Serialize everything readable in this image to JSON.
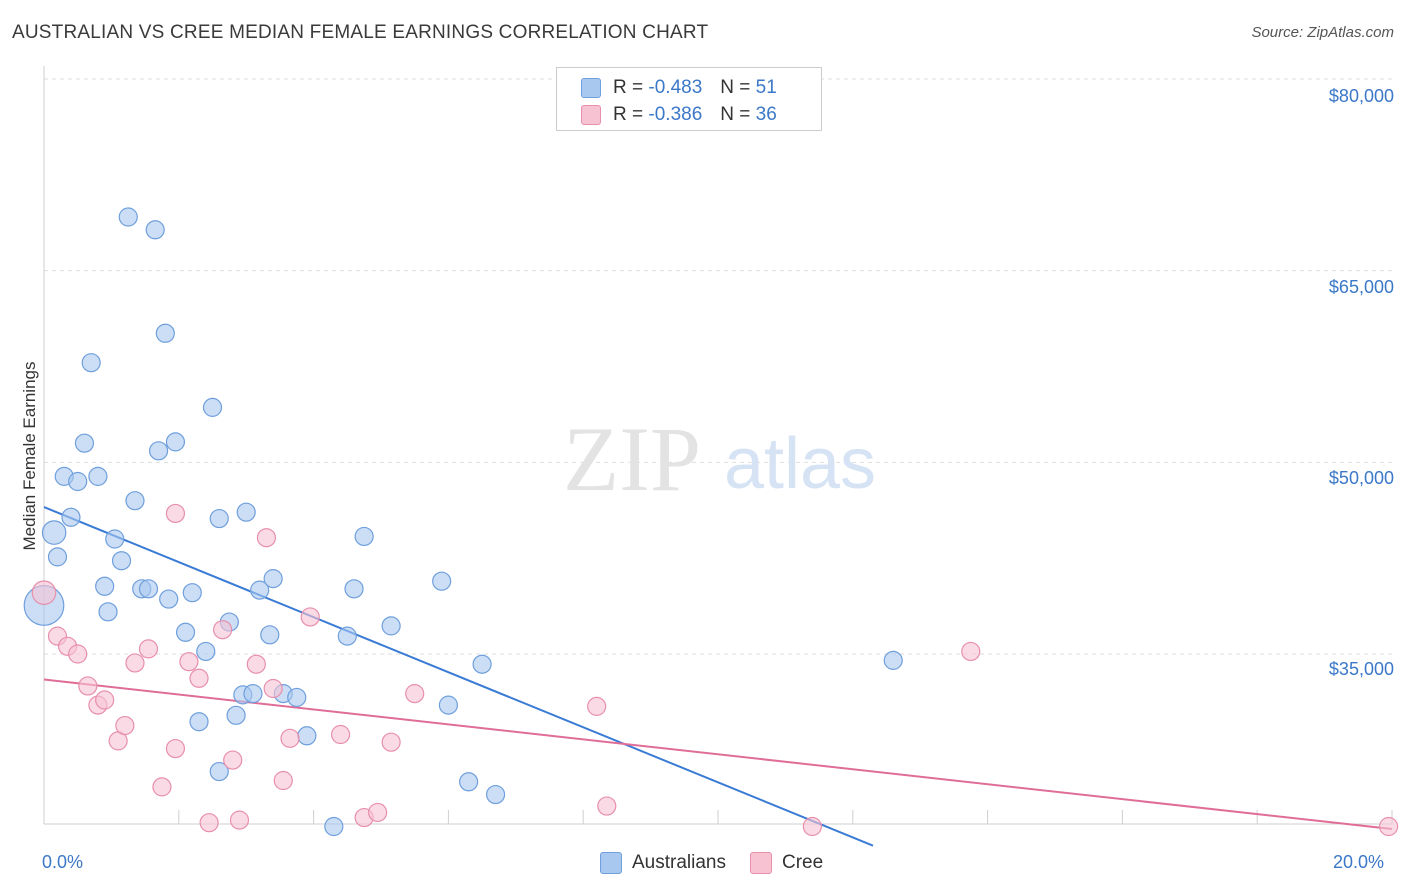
{
  "header": {
    "title": "AUSTRALIAN VS CREE MEDIAN FEMALE EARNINGS CORRELATION CHART",
    "source": "Source: ZipAtlas.com"
  },
  "watermark": {
    "zip": "ZIP",
    "atlas": "atlas"
  },
  "legend": {
    "rows": [
      {
        "r_label": "R =",
        "r_value": "-0.483",
        "n_label": "N =",
        "n_value": "51",
        "color": "#a9c8f0",
        "border": "#6f9fdc"
      },
      {
        "r_label": "R =",
        "r_value": "-0.386",
        "n_label": "N =",
        "n_value": "36",
        "color": "#f7c3d3",
        "border": "#e88fab"
      }
    ]
  },
  "bottom_legend": {
    "australians": "Australians",
    "cree": "Cree"
  },
  "chart_data": {
    "type": "scatter",
    "title": "AUSTRALIAN VS CREE MEDIAN FEMALE EARNINGS CORRELATION CHART",
    "xlabel": "",
    "ylabel": "Median Female Earnings",
    "xlim": [
      0,
      20
    ],
    "ylim": [
      20000,
      82000
    ],
    "x_tick_labels": [
      "0.0%",
      "20.0%"
    ],
    "y_ticks": [
      35000,
      50000,
      65000,
      80000
    ],
    "y_tick_labels": [
      "$35,000",
      "$50,000",
      "$65,000",
      "$80,000"
    ],
    "grid": true,
    "legend_position": "top-center",
    "series": [
      {
        "name": "Australians",
        "color": "#6f9fdc",
        "fill": "#a9c8f0",
        "trend": {
          "x": [
            0.0,
            12.3
          ],
          "y": [
            46500,
            20000
          ],
          "color": "#3a7bd5"
        },
        "points": [
          {
            "x": 0.0,
            "y": 38800,
            "s": 2.2
          },
          {
            "x": 0.15,
            "y": 44500,
            "s": 1.3
          },
          {
            "x": 0.2,
            "y": 42600
          },
          {
            "x": 0.3,
            "y": 48900
          },
          {
            "x": 0.4,
            "y": 45700
          },
          {
            "x": 0.5,
            "y": 48500
          },
          {
            "x": 0.6,
            "y": 51500
          },
          {
            "x": 0.7,
            "y": 57800
          },
          {
            "x": 0.8,
            "y": 48900
          },
          {
            "x": 0.9,
            "y": 40300
          },
          {
            "x": 0.95,
            "y": 38300
          },
          {
            "x": 1.05,
            "y": 44000
          },
          {
            "x": 1.15,
            "y": 42300
          },
          {
            "x": 1.25,
            "y": 69200
          },
          {
            "x": 1.35,
            "y": 47000
          },
          {
            "x": 1.45,
            "y": 40100
          },
          {
            "x": 1.55,
            "y": 40100
          },
          {
            "x": 1.65,
            "y": 68200
          },
          {
            "x": 1.7,
            "y": 50900
          },
          {
            "x": 1.8,
            "y": 60100
          },
          {
            "x": 1.85,
            "y": 39300
          },
          {
            "x": 1.95,
            "y": 51600
          },
          {
            "x": 2.1,
            "y": 36700
          },
          {
            "x": 2.2,
            "y": 39800
          },
          {
            "x": 2.3,
            "y": 29700
          },
          {
            "x": 2.4,
            "y": 35200
          },
          {
            "x": 2.5,
            "y": 54300
          },
          {
            "x": 2.6,
            "y": 25800
          },
          {
            "x": 2.6,
            "y": 45600
          },
          {
            "x": 2.75,
            "y": 37500
          },
          {
            "x": 2.85,
            "y": 30200
          },
          {
            "x": 2.95,
            "y": 31800
          },
          {
            "x": 3.0,
            "y": 46100
          },
          {
            "x": 3.1,
            "y": 31900
          },
          {
            "x": 3.2,
            "y": 40000
          },
          {
            "x": 3.35,
            "y": 36500
          },
          {
            "x": 3.4,
            "y": 40900
          },
          {
            "x": 3.55,
            "y": 31900
          },
          {
            "x": 3.75,
            "y": 31600
          },
          {
            "x": 3.9,
            "y": 28600
          },
          {
            "x": 4.3,
            "y": 21500
          },
          {
            "x": 4.5,
            "y": 36400
          },
          {
            "x": 4.6,
            "y": 40100
          },
          {
            "x": 4.75,
            "y": 44200
          },
          {
            "x": 5.15,
            "y": 37200
          },
          {
            "x": 5.9,
            "y": 40700
          },
          {
            "x": 6.0,
            "y": 31000
          },
          {
            "x": 6.3,
            "y": 25000
          },
          {
            "x": 6.5,
            "y": 34200
          },
          {
            "x": 6.7,
            "y": 24000
          },
          {
            "x": 12.6,
            "y": 34500
          }
        ]
      },
      {
        "name": "Cree",
        "color": "#e88fab",
        "fill": "#f7c3d3",
        "trend": {
          "x": [
            0.0,
            20.0
          ],
          "y": [
            33000,
            21300
          ],
          "color": "#e06d97"
        },
        "points": [
          {
            "x": 0.0,
            "y": 39800,
            "s": 1.3
          },
          {
            "x": 0.2,
            "y": 36400
          },
          {
            "x": 0.35,
            "y": 35600
          },
          {
            "x": 0.5,
            "y": 35000
          },
          {
            "x": 0.65,
            "y": 32500
          },
          {
            "x": 0.8,
            "y": 31000
          },
          {
            "x": 0.9,
            "y": 31400
          },
          {
            "x": 1.1,
            "y": 28200
          },
          {
            "x": 1.2,
            "y": 29400
          },
          {
            "x": 1.35,
            "y": 34300
          },
          {
            "x": 1.55,
            "y": 35400
          },
          {
            "x": 1.75,
            "y": 24600
          },
          {
            "x": 1.95,
            "y": 46000
          },
          {
            "x": 1.95,
            "y": 27600
          },
          {
            "x": 2.15,
            "y": 34400
          },
          {
            "x": 2.3,
            "y": 33100
          },
          {
            "x": 2.45,
            "y": 21800
          },
          {
            "x": 2.65,
            "y": 36900
          },
          {
            "x": 2.8,
            "y": 26700
          },
          {
            "x": 2.9,
            "y": 22000
          },
          {
            "x": 3.15,
            "y": 34200
          },
          {
            "x": 3.3,
            "y": 44100
          },
          {
            "x": 3.4,
            "y": 32300
          },
          {
            "x": 3.55,
            "y": 25100
          },
          {
            "x": 3.65,
            "y": 28400
          },
          {
            "x": 3.95,
            "y": 37900
          },
          {
            "x": 4.4,
            "y": 28700
          },
          {
            "x": 4.75,
            "y": 22200
          },
          {
            "x": 4.95,
            "y": 22600
          },
          {
            "x": 5.15,
            "y": 28100
          },
          {
            "x": 5.5,
            "y": 31900
          },
          {
            "x": 8.2,
            "y": 30900
          },
          {
            "x": 8.35,
            "y": 23100
          },
          {
            "x": 11.4,
            "y": 21500
          },
          {
            "x": 13.75,
            "y": 35200
          },
          {
            "x": 19.95,
            "y": 21500
          }
        ]
      }
    ]
  }
}
